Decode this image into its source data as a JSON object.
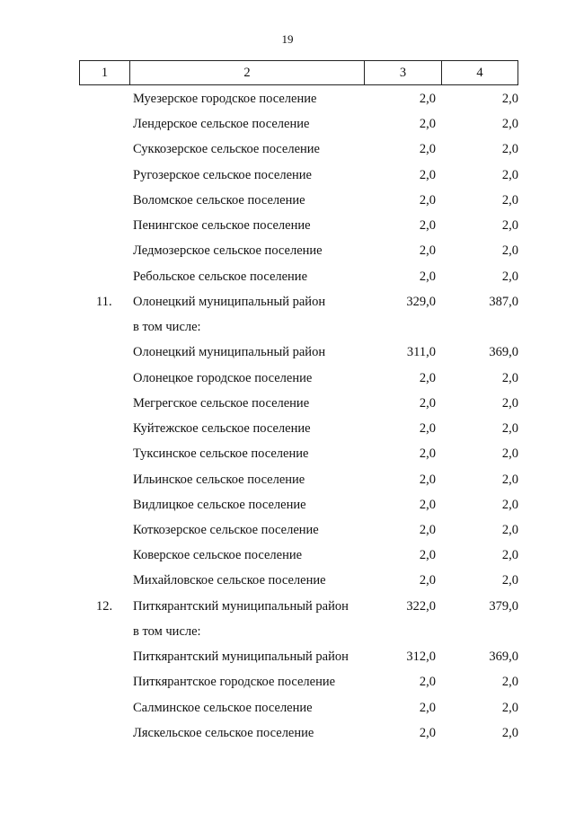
{
  "page_number": "19",
  "header": [
    "1",
    "2",
    "3",
    "4"
  ],
  "rows": [
    {
      "n": "",
      "name": "Муезерское городское поселение",
      "c3": "2,0",
      "c4": "2,0"
    },
    {
      "n": "",
      "name": "Лендерское сельское поселение",
      "c3": "2,0",
      "c4": "2,0"
    },
    {
      "n": "",
      "name": "Суккозерское сельское поселение",
      "c3": "2,0",
      "c4": "2,0"
    },
    {
      "n": "",
      "name": "Ругозерское сельское поселение",
      "c3": "2,0",
      "c4": "2,0"
    },
    {
      "n": "",
      "name": "Воломское сельское поселение",
      "c3": "2,0",
      "c4": "2,0"
    },
    {
      "n": "",
      "name": "Пенингское сельское поселение",
      "c3": "2,0",
      "c4": "2,0"
    },
    {
      "n": "",
      "name": "Ледмозерское сельское поселение",
      "c3": "2,0",
      "c4": "2,0"
    },
    {
      "n": "",
      "name": "Ребольское сельское поселение",
      "c3": "2,0",
      "c4": "2,0"
    },
    {
      "n": "11.",
      "name": "Олонецкий муниципальный район",
      "c3": "329,0",
      "c4": "387,0"
    },
    {
      "n": "",
      "name": "в том числе:",
      "c3": "",
      "c4": ""
    },
    {
      "n": "",
      "name": "Олонецкий муниципальный район",
      "c3": "311,0",
      "c4": "369,0"
    },
    {
      "n": "",
      "name": "Олонецкое городское поселение",
      "c3": "2,0",
      "c4": "2,0"
    },
    {
      "n": "",
      "name": "Мегрегское сельское поселение",
      "c3": "2,0",
      "c4": "2,0"
    },
    {
      "n": "",
      "name": "Куйтежское сельское поселение",
      "c3": "2,0",
      "c4": "2,0"
    },
    {
      "n": "",
      "name": "Туксинское сельское поселение",
      "c3": "2,0",
      "c4": "2,0"
    },
    {
      "n": "",
      "name": "Ильинское сельское поселение",
      "c3": "2,0",
      "c4": "2,0"
    },
    {
      "n": "",
      "name": "Видлицкое сельское поселение",
      "c3": "2,0",
      "c4": "2,0"
    },
    {
      "n": "",
      "name": "Коткозерское сельское поселение",
      "c3": "2,0",
      "c4": "2,0"
    },
    {
      "n": "",
      "name": "Коверское сельское поселение",
      "c3": "2,0",
      "c4": "2,0"
    },
    {
      "n": "",
      "name": "Михайловское сельское поселение",
      "c3": "2,0",
      "c4": "2,0"
    },
    {
      "n": "12.",
      "name": "Питкярантский муниципальный район",
      "c3": "322,0",
      "c4": "379,0"
    },
    {
      "n": "",
      "name": "в том числе:",
      "c3": "",
      "c4": ""
    },
    {
      "n": "",
      "name": "Питкярантский муниципальный район",
      "c3": "312,0",
      "c4": "369,0"
    },
    {
      "n": "",
      "name": "Питкярантское городское поселение",
      "c3": "2,0",
      "c4": "2,0"
    },
    {
      "n": "",
      "name": "Салминское сельское поселение",
      "c3": "2,0",
      "c4": "2,0"
    },
    {
      "n": "",
      "name": "Ляскельское сельское поселение",
      "c3": "2,0",
      "c4": "2,0"
    }
  ]
}
